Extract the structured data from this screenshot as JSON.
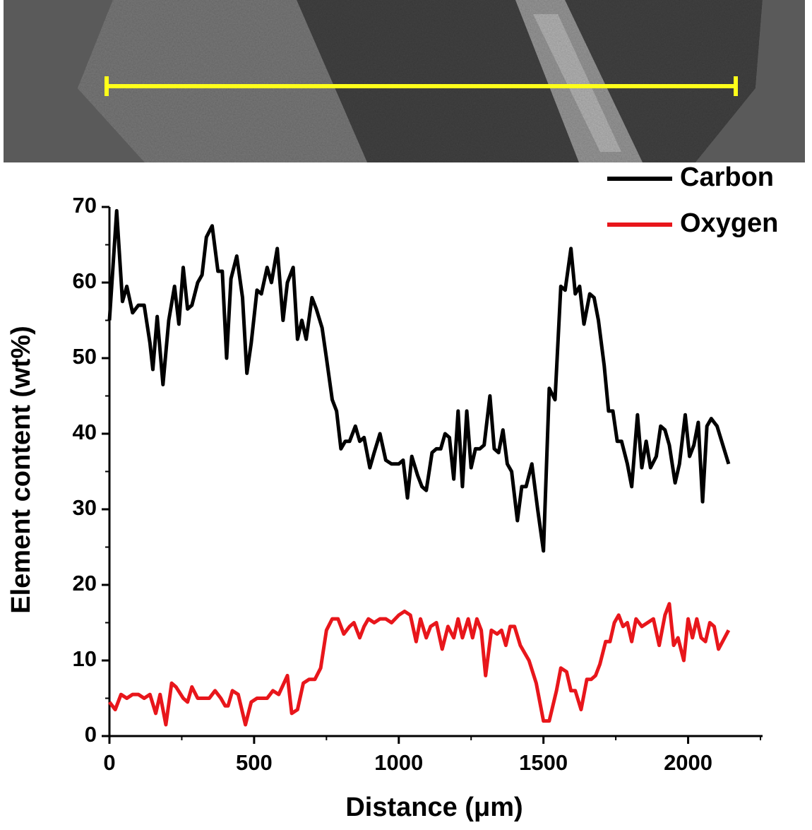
{
  "chart_data": {
    "type": "line",
    "x_label": "Distance (μm)",
    "y_label": "Element content (wt%)",
    "xlim": [
      0,
      2250
    ],
    "xticks": [
      0,
      500,
      1000,
      1500,
      2000
    ],
    "ylim": [
      0,
      70
    ],
    "yticks": [
      0,
      10,
      20,
      30,
      40,
      50,
      60,
      70
    ],
    "legend": "upper right",
    "series": [
      {
        "name": "Carbon",
        "color": "#000000",
        "x": [
          0,
          25,
          45,
          60,
          80,
          100,
          120,
          140,
          150,
          165,
          185,
          205,
          225,
          240,
          255,
          270,
          285,
          305,
          320,
          335,
          355,
          375,
          390,
          405,
          420,
          440,
          460,
          475,
          490,
          510,
          525,
          545,
          560,
          580,
          600,
          615,
          635,
          650,
          665,
          680,
          700,
          715,
          735,
          750,
          770,
          785,
          800,
          815,
          830,
          850,
          865,
          880,
          900,
          915,
          935,
          955,
          975,
          1000,
          1015,
          1030,
          1045,
          1065,
          1080,
          1095,
          1115,
          1130,
          1145,
          1160,
          1175,
          1190,
          1205,
          1220,
          1235,
          1250,
          1265,
          1280,
          1295,
          1315,
          1330,
          1345,
          1360,
          1375,
          1390,
          1410,
          1425,
          1440,
          1460,
          1480,
          1500,
          1520,
          1540,
          1560,
          1575,
          1595,
          1610,
          1625,
          1640,
          1660,
          1675,
          1690,
          1710,
          1725,
          1740,
          1755,
          1770,
          1790,
          1805,
          1825,
          1840,
          1855,
          1870,
          1890,
          1905,
          1920,
          1935,
          1955,
          1970,
          1990,
          2005,
          2020,
          2035,
          2050,
          2065,
          2080,
          2100,
          2140
        ],
        "values": [
          55,
          69.5,
          57.5,
          59.5,
          56,
          57,
          57,
          52,
          48.5,
          55.5,
          46.5,
          55,
          59.5,
          54.5,
          62,
          56.5,
          57,
          60,
          61,
          66,
          67.5,
          61.5,
          61.5,
          50,
          60.5,
          63.5,
          58,
          48,
          52,
          59,
          58.5,
          62,
          60,
          64.5,
          55,
          60,
          62,
          52.5,
          55,
          52.5,
          58,
          56.5,
          54,
          50,
          44.5,
          43,
          38,
          39,
          39,
          41,
          39,
          39.5,
          35.5,
          37.5,
          40,
          36.5,
          36,
          36,
          36.5,
          31.5,
          37,
          34.5,
          33,
          32.5,
          37.5,
          38,
          38,
          40,
          39.5,
          34,
          43,
          33,
          43,
          35.5,
          38,
          38,
          38.5,
          45,
          38,
          37.5,
          40.5,
          36,
          35,
          28.5,
          33,
          33,
          36,
          30,
          24.5,
          46,
          44.5,
          59.5,
          59,
          64.5,
          58.5,
          59.5,
          54.5,
          58.5,
          58,
          55,
          49,
          43,
          43,
          39,
          39,
          36,
          33,
          42.5,
          35.5,
          39,
          35.5,
          37,
          41,
          40.5,
          38.5,
          33.5,
          36,
          42.5,
          37,
          38.5,
          41.5,
          31,
          41,
          42,
          41,
          36
        ]
      },
      {
        "name": "Oxygen",
        "color": "#e8161b",
        "x": [
          0,
          20,
          40,
          60,
          80,
          100,
          120,
          140,
          160,
          175,
          195,
          215,
          230,
          255,
          270,
          285,
          305,
          330,
          345,
          365,
          385,
          400,
          410,
          425,
          445,
          470,
          490,
          510,
          530,
          545,
          565,
          585,
          615,
          630,
          650,
          670,
          690,
          710,
          730,
          750,
          770,
          790,
          810,
          830,
          845,
          865,
          880,
          895,
          915,
          935,
          955,
          975,
          1000,
          1020,
          1040,
          1060,
          1075,
          1095,
          1110,
          1130,
          1150,
          1170,
          1190,
          1205,
          1220,
          1240,
          1255,
          1270,
          1285,
          1300,
          1320,
          1340,
          1355,
          1370,
          1385,
          1400,
          1420,
          1450,
          1475,
          1500,
          1520,
          1545,
          1560,
          1580,
          1595,
          1610,
          1630,
          1650,
          1665,
          1680,
          1695,
          1715,
          1730,
          1745,
          1760,
          1775,
          1790,
          1805,
          1820,
          1840,
          1860,
          1880,
          1900,
          1920,
          1935,
          1950,
          1965,
          1985,
          2000,
          2015,
          2030,
          2045,
          2060,
          2075,
          2090,
          2105,
          2140
        ],
        "values": [
          4.5,
          3.5,
          5.5,
          5,
          5.5,
          5.5,
          5,
          5.5,
          3,
          5.5,
          1.5,
          7,
          6.5,
          5,
          4.5,
          6.5,
          5,
          5,
          5,
          6,
          5,
          4,
          4,
          6,
          5.5,
          1.5,
          4.5,
          5,
          5,
          5,
          6,
          5.5,
          8,
          3,
          3.5,
          7,
          7.5,
          7.5,
          9,
          14,
          15.5,
          15.5,
          13.5,
          14.5,
          15,
          13,
          14.5,
          15.5,
          15,
          15.5,
          15.5,
          15,
          16,
          16.5,
          16,
          12.5,
          15.5,
          13,
          14.5,
          15,
          11.5,
          14.5,
          13,
          15.5,
          13,
          15.5,
          13,
          15.5,
          14,
          8,
          14,
          13.5,
          14,
          12,
          14.5,
          14.5,
          12,
          10,
          7,
          2,
          2,
          6,
          9,
          8.5,
          6,
          6,
          3.5,
          7.5,
          7.5,
          8,
          9.5,
          12.5,
          12.5,
          15,
          16,
          14.5,
          15,
          12.5,
          15.5,
          14.5,
          15,
          15.5,
          12,
          16,
          17.5,
          12,
          13,
          10,
          15.5,
          13,
          15.5,
          13,
          12.5,
          15,
          14.5,
          11.5,
          14
        ]
      }
    ]
  }
}
